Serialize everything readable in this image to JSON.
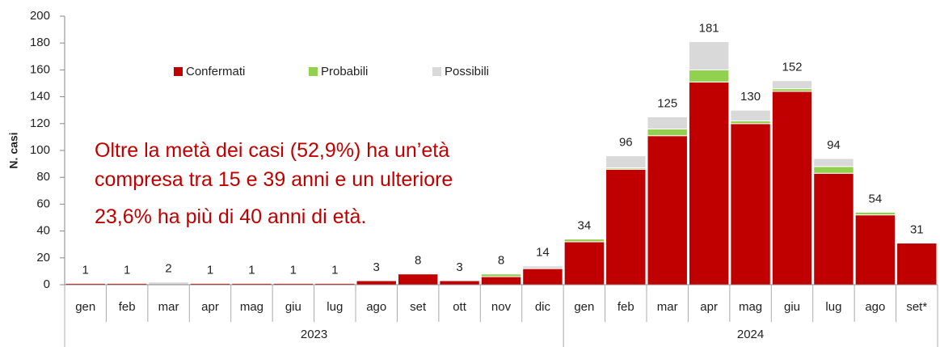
{
  "chart_data": {
    "type": "stacked_bar",
    "y_label": "N. casi",
    "categories": [
      "gen",
      "feb",
      "mar",
      "apr",
      "mag",
      "giu",
      "lug",
      "ago",
      "set",
      "ott",
      "nov",
      "dic",
      "gen",
      "feb",
      "mar",
      "apr",
      "mag",
      "giu",
      "lug",
      "ago",
      "set*"
    ],
    "groups": [
      "2023",
      "2024"
    ],
    "series": [
      {
        "name": "Confermati",
        "color": "#c00000",
        "values": [
          1,
          1,
          0,
          1,
          1,
          1,
          1,
          3,
          8,
          3,
          6,
          12,
          32,
          86,
          111,
          151,
          120,
          144,
          83,
          52,
          31
        ]
      },
      {
        "name": "Probabili",
        "color": "#92d050",
        "values": [
          0,
          0,
          0,
          0,
          0,
          0,
          0,
          0,
          0,
          0,
          2,
          0,
          2,
          1,
          5,
          9,
          2,
          2,
          5,
          2,
          0
        ]
      },
      {
        "name": "Possibili",
        "color": "#d9d9d9",
        "values": [
          0,
          0,
          2,
          0,
          0,
          0,
          0,
          0,
          0,
          0,
          0,
          2,
          0,
          9,
          9,
          21,
          8,
          6,
          6,
          0,
          0
        ]
      }
    ],
    "totals": [
      1,
      1,
      2,
      1,
      1,
      1,
      1,
      3,
      8,
      3,
      8,
      14,
      34,
      96,
      125,
      181,
      130,
      152,
      94,
      54,
      31
    ],
    "ylim": [
      0,
      200
    ],
    "yticks": [
      0,
      20,
      40,
      60,
      80,
      100,
      120,
      140,
      160,
      180,
      200
    ],
    "annotation": [
      "Oltre la metà dei casi (52,9%) ha un’età",
      "compresa tra 15 e 39 anni e un ulteriore",
      "23,6% ha più di 40 anni di età."
    ]
  }
}
